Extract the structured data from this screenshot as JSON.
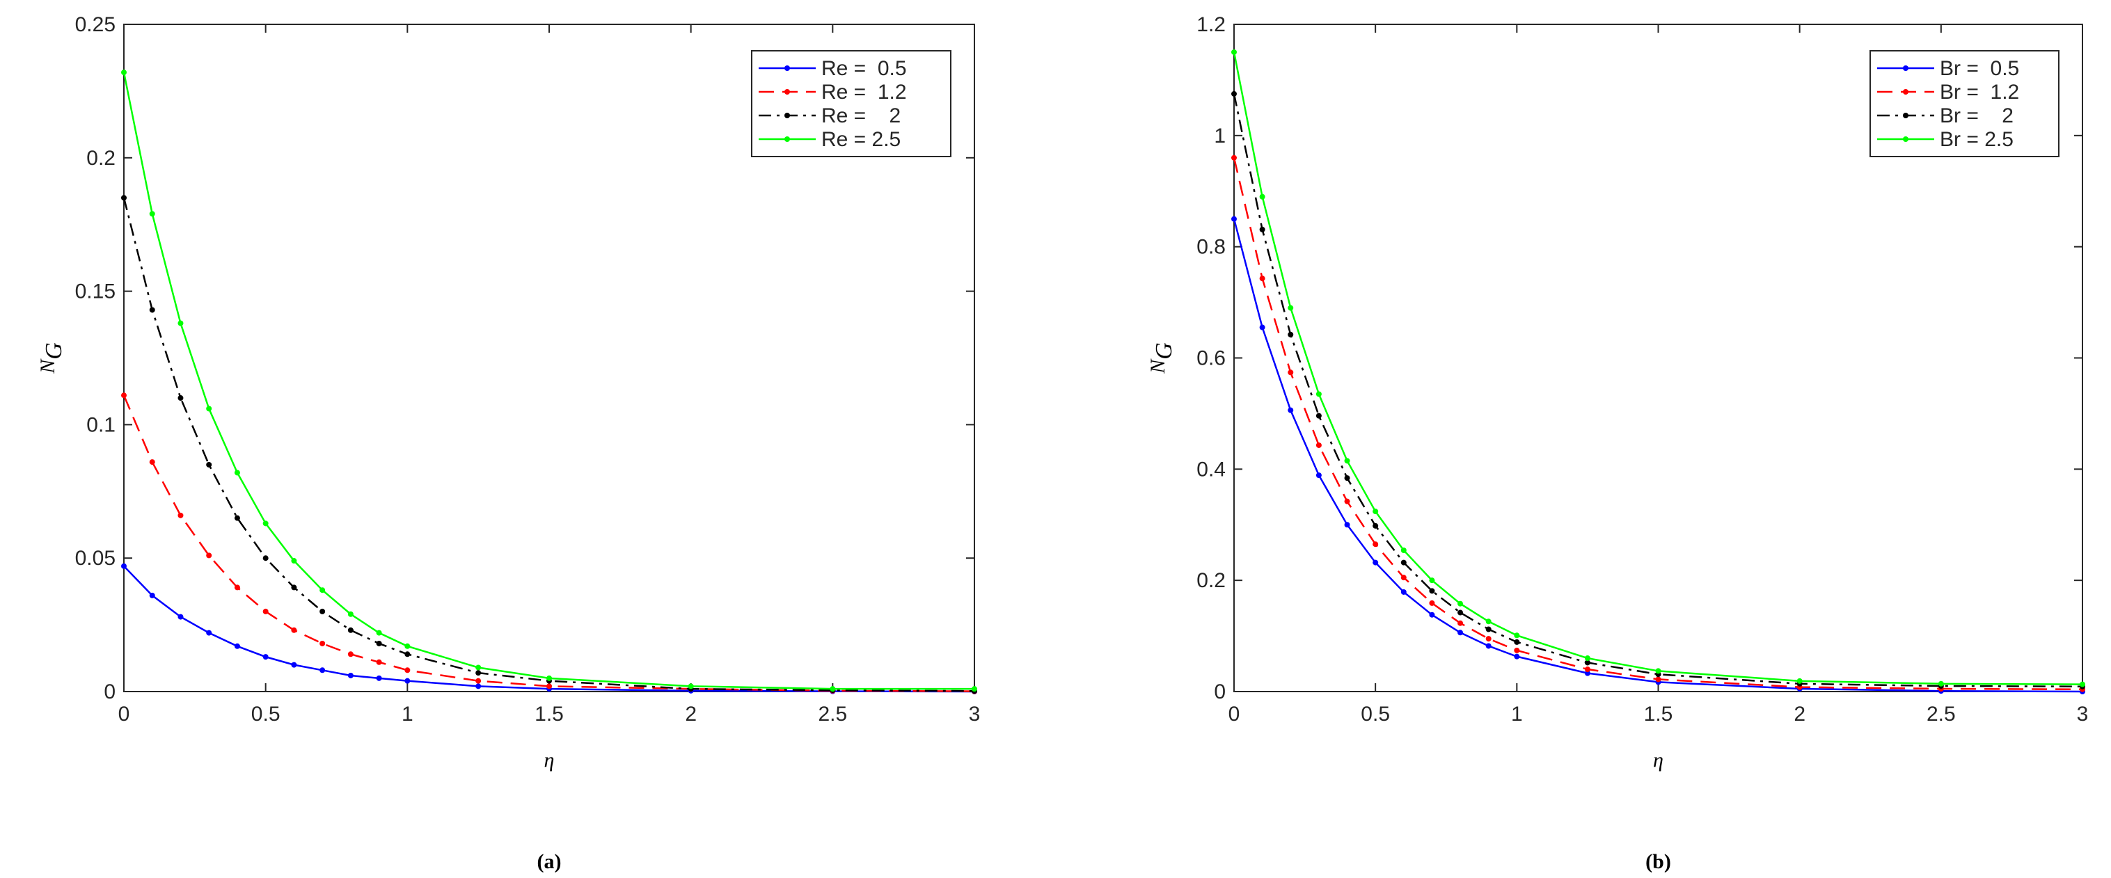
{
  "chart_data": [
    {
      "type": "line",
      "caption": "(a)",
      "xlabel": "η",
      "ylabel": {
        "main": "N",
        "sub": "G"
      },
      "x": [
        0,
        0.1,
        0.2,
        0.3,
        0.4,
        0.5,
        0.6,
        0.7,
        0.8,
        0.9,
        1,
        1.25,
        1.5,
        2,
        2.5,
        3
      ],
      "xlim": [
        0,
        3
      ],
      "xticks": [
        0,
        0.5,
        1,
        1.5,
        2,
        2.5,
        3
      ],
      "ylim": [
        0,
        0.25
      ],
      "yticks": [
        0,
        0.05,
        0.1,
        0.15,
        0.2,
        0.25
      ],
      "legend": "upper right",
      "series": [
        {
          "name": "Re =  0.5",
          "color": "#0000ff",
          "linestyle": "solid",
          "values": [
            0.047,
            0.036,
            0.028,
            0.022,
            0.017,
            0.013,
            0.01,
            0.008,
            0.006,
            0.005,
            0.004,
            0.002,
            0.001,
            0.0003,
            0.0001,
            0
          ]
        },
        {
          "name": "Re =  1.2",
          "color": "#ff0000",
          "linestyle": "dashed",
          "values": [
            0.111,
            0.086,
            0.066,
            0.051,
            0.039,
            0.03,
            0.023,
            0.018,
            0.014,
            0.011,
            0.008,
            0.004,
            0.002,
            0.001,
            0.0003,
            0.0001
          ]
        },
        {
          "name": "Re =    2",
          "color": "#000000",
          "linestyle": "dashdot",
          "values": [
            0.185,
            0.143,
            0.11,
            0.085,
            0.065,
            0.05,
            0.039,
            0.03,
            0.023,
            0.018,
            0.014,
            0.007,
            0.004,
            0.001,
            0.0005,
            0.0002
          ]
        },
        {
          "name": "Re = 2.5",
          "color": "#00ff00",
          "linestyle": "solid",
          "values": [
            0.232,
            0.179,
            0.138,
            0.106,
            0.082,
            0.063,
            0.049,
            0.038,
            0.029,
            0.022,
            0.017,
            0.009,
            0.005,
            0.002,
            0.001,
            0.001
          ]
        }
      ]
    },
    {
      "type": "line",
      "caption": "(b)",
      "xlabel": "η",
      "ylabel": {
        "main": "N",
        "sub": "G"
      },
      "x": [
        0,
        0.1,
        0.2,
        0.3,
        0.4,
        0.5,
        0.6,
        0.7,
        0.8,
        0.9,
        1,
        1.25,
        1.5,
        2,
        2.5,
        3
      ],
      "xlim": [
        0,
        3
      ],
      "xticks": [
        0,
        0.5,
        1,
        1.5,
        2,
        2.5,
        3
      ],
      "ylim": [
        0,
        1.2
      ],
      "yticks": [
        0,
        0.2,
        0.4,
        0.6,
        0.8,
        1,
        1.2
      ],
      "legend": "upper right",
      "series": [
        {
          "name": "Br =  0.5",
          "color": "#0000ff",
          "linestyle": "solid",
          "values": [
            0.85,
            0.655,
            0.506,
            0.389,
            0.3,
            0.232,
            0.179,
            0.138,
            0.106,
            0.082,
            0.063,
            0.033,
            0.017,
            0.005,
            0.001,
            0
          ]
        },
        {
          "name": "Br =  1.2",
          "color": "#ff0000",
          "linestyle": "dashed",
          "values": [
            0.96,
            0.743,
            0.574,
            0.443,
            0.342,
            0.265,
            0.205,
            0.159,
            0.123,
            0.095,
            0.074,
            0.04,
            0.022,
            0.008,
            0.005,
            0.004
          ]
        },
        {
          "name": "Br =    2",
          "color": "#000000",
          "linestyle": "dashdot",
          "values": [
            1.075,
            0.831,
            0.642,
            0.496,
            0.384,
            0.298,
            0.232,
            0.181,
            0.142,
            0.112,
            0.089,
            0.052,
            0.031,
            0.014,
            0.01,
            0.009
          ]
        },
        {
          "name": "Br = 2.5",
          "color": "#00ff00",
          "linestyle": "solid",
          "values": [
            1.15,
            0.89,
            0.69,
            0.535,
            0.415,
            0.324,
            0.254,
            0.2,
            0.158,
            0.126,
            0.101,
            0.06,
            0.037,
            0.019,
            0.014,
            0.013
          ]
        }
      ]
    }
  ]
}
